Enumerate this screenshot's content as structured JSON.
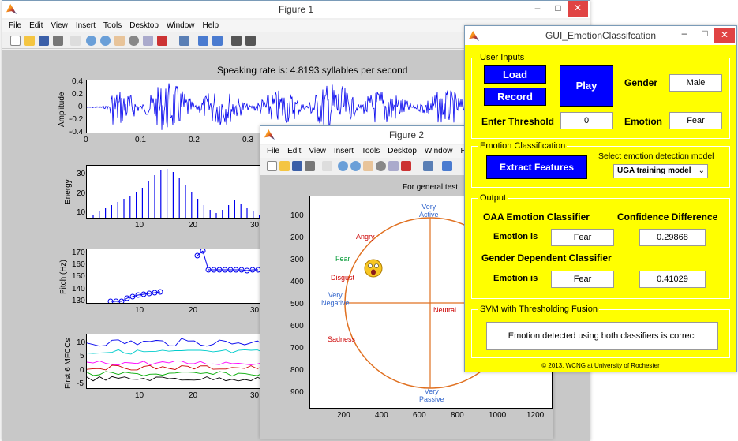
{
  "fig1": {
    "title": "Figure 1",
    "menu": [
      "File",
      "Edit",
      "View",
      "Insert",
      "Tools",
      "Desktop",
      "Window",
      "Help"
    ],
    "plot_title": "Speaking rate is: 4.8193 syllables per second",
    "amp": {
      "ylabel": "Amplitude",
      "yticks": [
        "0.4",
        "0.2",
        "0",
        "-0.2",
        "-0.4"
      ],
      "xticks": [
        "0",
        "0.1",
        "0.2",
        "0.3"
      ]
    },
    "energy": {
      "ylabel": "Energy",
      "yticks": [
        "30",
        "20",
        "10"
      ],
      "xticks": [
        "10",
        "20",
        "30"
      ]
    },
    "pitch": {
      "ylabel": "Pitch (Hz)",
      "yticks": [
        "170",
        "160",
        "150",
        "140",
        "130"
      ],
      "xticks": [
        "10",
        "20",
        "30"
      ]
    },
    "mfcc": {
      "ylabel": "First 6 MFCCs",
      "yticks": [
        "10",
        "5",
        "0",
        "-5"
      ],
      "xticks": [
        "10",
        "20",
        "30"
      ]
    }
  },
  "fig2": {
    "title": "Figure 2",
    "menu": [
      "File",
      "Edit",
      "View",
      "Insert",
      "Tools",
      "Desktop",
      "Window",
      "Help"
    ],
    "plot_title": "For general test",
    "yticks": [
      "100",
      "200",
      "300",
      "400",
      "500",
      "600",
      "700",
      "800",
      "900"
    ],
    "xticks": [
      "200",
      "400",
      "600",
      "800",
      "1000",
      "1200"
    ],
    "labels": {
      "very_active": [
        "Very",
        "Active"
      ],
      "very_passive": [
        "Very",
        "Passive"
      ],
      "very_negative": [
        "Very",
        "Negative"
      ],
      "neutral": "Neutral",
      "angry": "Angry",
      "fear": "Fear",
      "disgust": "Disgust",
      "sadness": "Sadness"
    },
    "colors": {
      "angry": "#cc0000",
      "fear": "#009933",
      "disgust": "#cc0000",
      "sadness": "#cc0000",
      "neutral": "#cc0000",
      "axis": "#3366cc",
      "circle": "#e07020"
    }
  },
  "gui": {
    "title": "GUI_EmotionClassifcation",
    "user_inputs": {
      "title": "User Inputs",
      "load": "Load",
      "record": "Record",
      "play": "Play",
      "gender_label": "Gender",
      "gender_value": "Male",
      "threshold_label": "Enter Threshold",
      "threshold_value": "0",
      "emotion_label": "Emotion",
      "emotion_value": "Fear"
    },
    "classification": {
      "title": "Emotion Classification",
      "extract": "Extract Features",
      "select_label": "Select emotion detection model",
      "model": "UGA training model"
    },
    "output": {
      "title": "Output",
      "oaa": "OAA Emotion Classifier",
      "confidence": "Confidence Difference",
      "emotion_is_1": "Emotion is",
      "oaa_value": "Fear",
      "conf_value_1": "0.29868",
      "gender_dep": "Gender Dependent Classifier",
      "emotion_is_2": "Emotion is",
      "gd_value": "Fear",
      "conf_value_2": "0.41029"
    },
    "fusion": {
      "title": "SVM with Thresholding Fusion",
      "result": "Emotion detected using both classifiers is correct"
    },
    "footer": "© 2013, WCNG at University of Rochester"
  }
}
